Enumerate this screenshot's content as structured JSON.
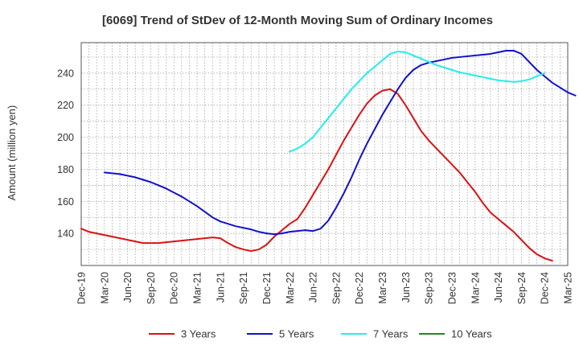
{
  "chart_data": {
    "type": "line",
    "title": "[6069]  Trend of StDev of 12-Month Moving Sum of Ordinary Incomes",
    "xlabel": "",
    "ylabel": "Amount (million yen)",
    "x_ticks": [
      "Dec-19",
      "Mar-20",
      "Jun-20",
      "Sep-20",
      "Dec-20",
      "Mar-21",
      "Jun-21",
      "Sep-21",
      "Dec-21",
      "Mar-22",
      "Jun-22",
      "Sep-22",
      "Dec-22",
      "Mar-23",
      "Jun-23",
      "Sep-23",
      "Dec-23",
      "Mar-24",
      "Jun-24",
      "Sep-24",
      "Dec-24",
      "Mar-25"
    ],
    "y_ticks": [
      140,
      160,
      180,
      200,
      220,
      240
    ],
    "ylim": [
      120,
      259
    ],
    "grid": true,
    "legend_position": "bottom",
    "series": [
      {
        "name": "3 Years",
        "color": "#dd1111",
        "start_month_index": 0,
        "values": [
          143,
          141,
          140,
          139,
          138,
          137,
          136,
          135,
          134,
          134,
          134,
          134.5,
          135,
          135.5,
          136,
          136.5,
          137,
          137.5,
          137,
          134,
          131.5,
          130,
          129,
          130,
          133,
          138,
          142,
          146,
          149,
          156,
          164,
          172,
          180,
          189,
          198,
          206,
          214,
          221,
          226,
          229,
          230,
          227,
          220,
          212,
          204,
          198,
          193,
          188,
          183,
          178,
          172,
          166,
          159,
          153,
          149,
          145,
          141,
          136,
          131,
          127,
          124.5,
          123
        ]
      },
      {
        "name": "5 Years",
        "color": "#1111cc",
        "start_month_index": 3,
        "values": [
          178,
          177.5,
          177,
          176,
          175,
          173.5,
          172,
          170,
          168,
          165.5,
          163,
          160,
          157,
          153.5,
          150,
          147.5,
          146,
          144.5,
          143.5,
          142.5,
          141,
          140,
          139.5,
          140,
          141,
          141.5,
          142,
          141.5,
          143,
          148,
          156,
          165,
          175,
          186,
          196,
          205,
          214,
          222,
          230,
          237,
          242,
          245,
          246.5,
          247.5,
          248.5,
          249.5,
          250,
          250.5,
          251,
          251.5,
          252,
          253,
          254,
          254,
          252,
          247,
          242,
          238,
          234,
          231,
          228,
          226
        ]
      },
      {
        "name": "7 Years",
        "color": "#22eeee",
        "start_month_index": 27,
        "values": [
          191,
          193,
          196,
          200,
          206,
          212,
          218,
          224,
          230,
          235,
          240,
          244,
          248,
          252,
          253.5,
          253,
          251,
          249,
          247,
          245,
          243.5,
          242,
          240.5,
          239.5,
          238.5,
          237.5,
          236.5,
          235.5,
          235,
          234.5,
          235,
          236,
          238,
          240
        ]
      },
      {
        "name": "10 Years",
        "color": "#228822",
        "start_month_index": 0,
        "values": []
      }
    ]
  }
}
